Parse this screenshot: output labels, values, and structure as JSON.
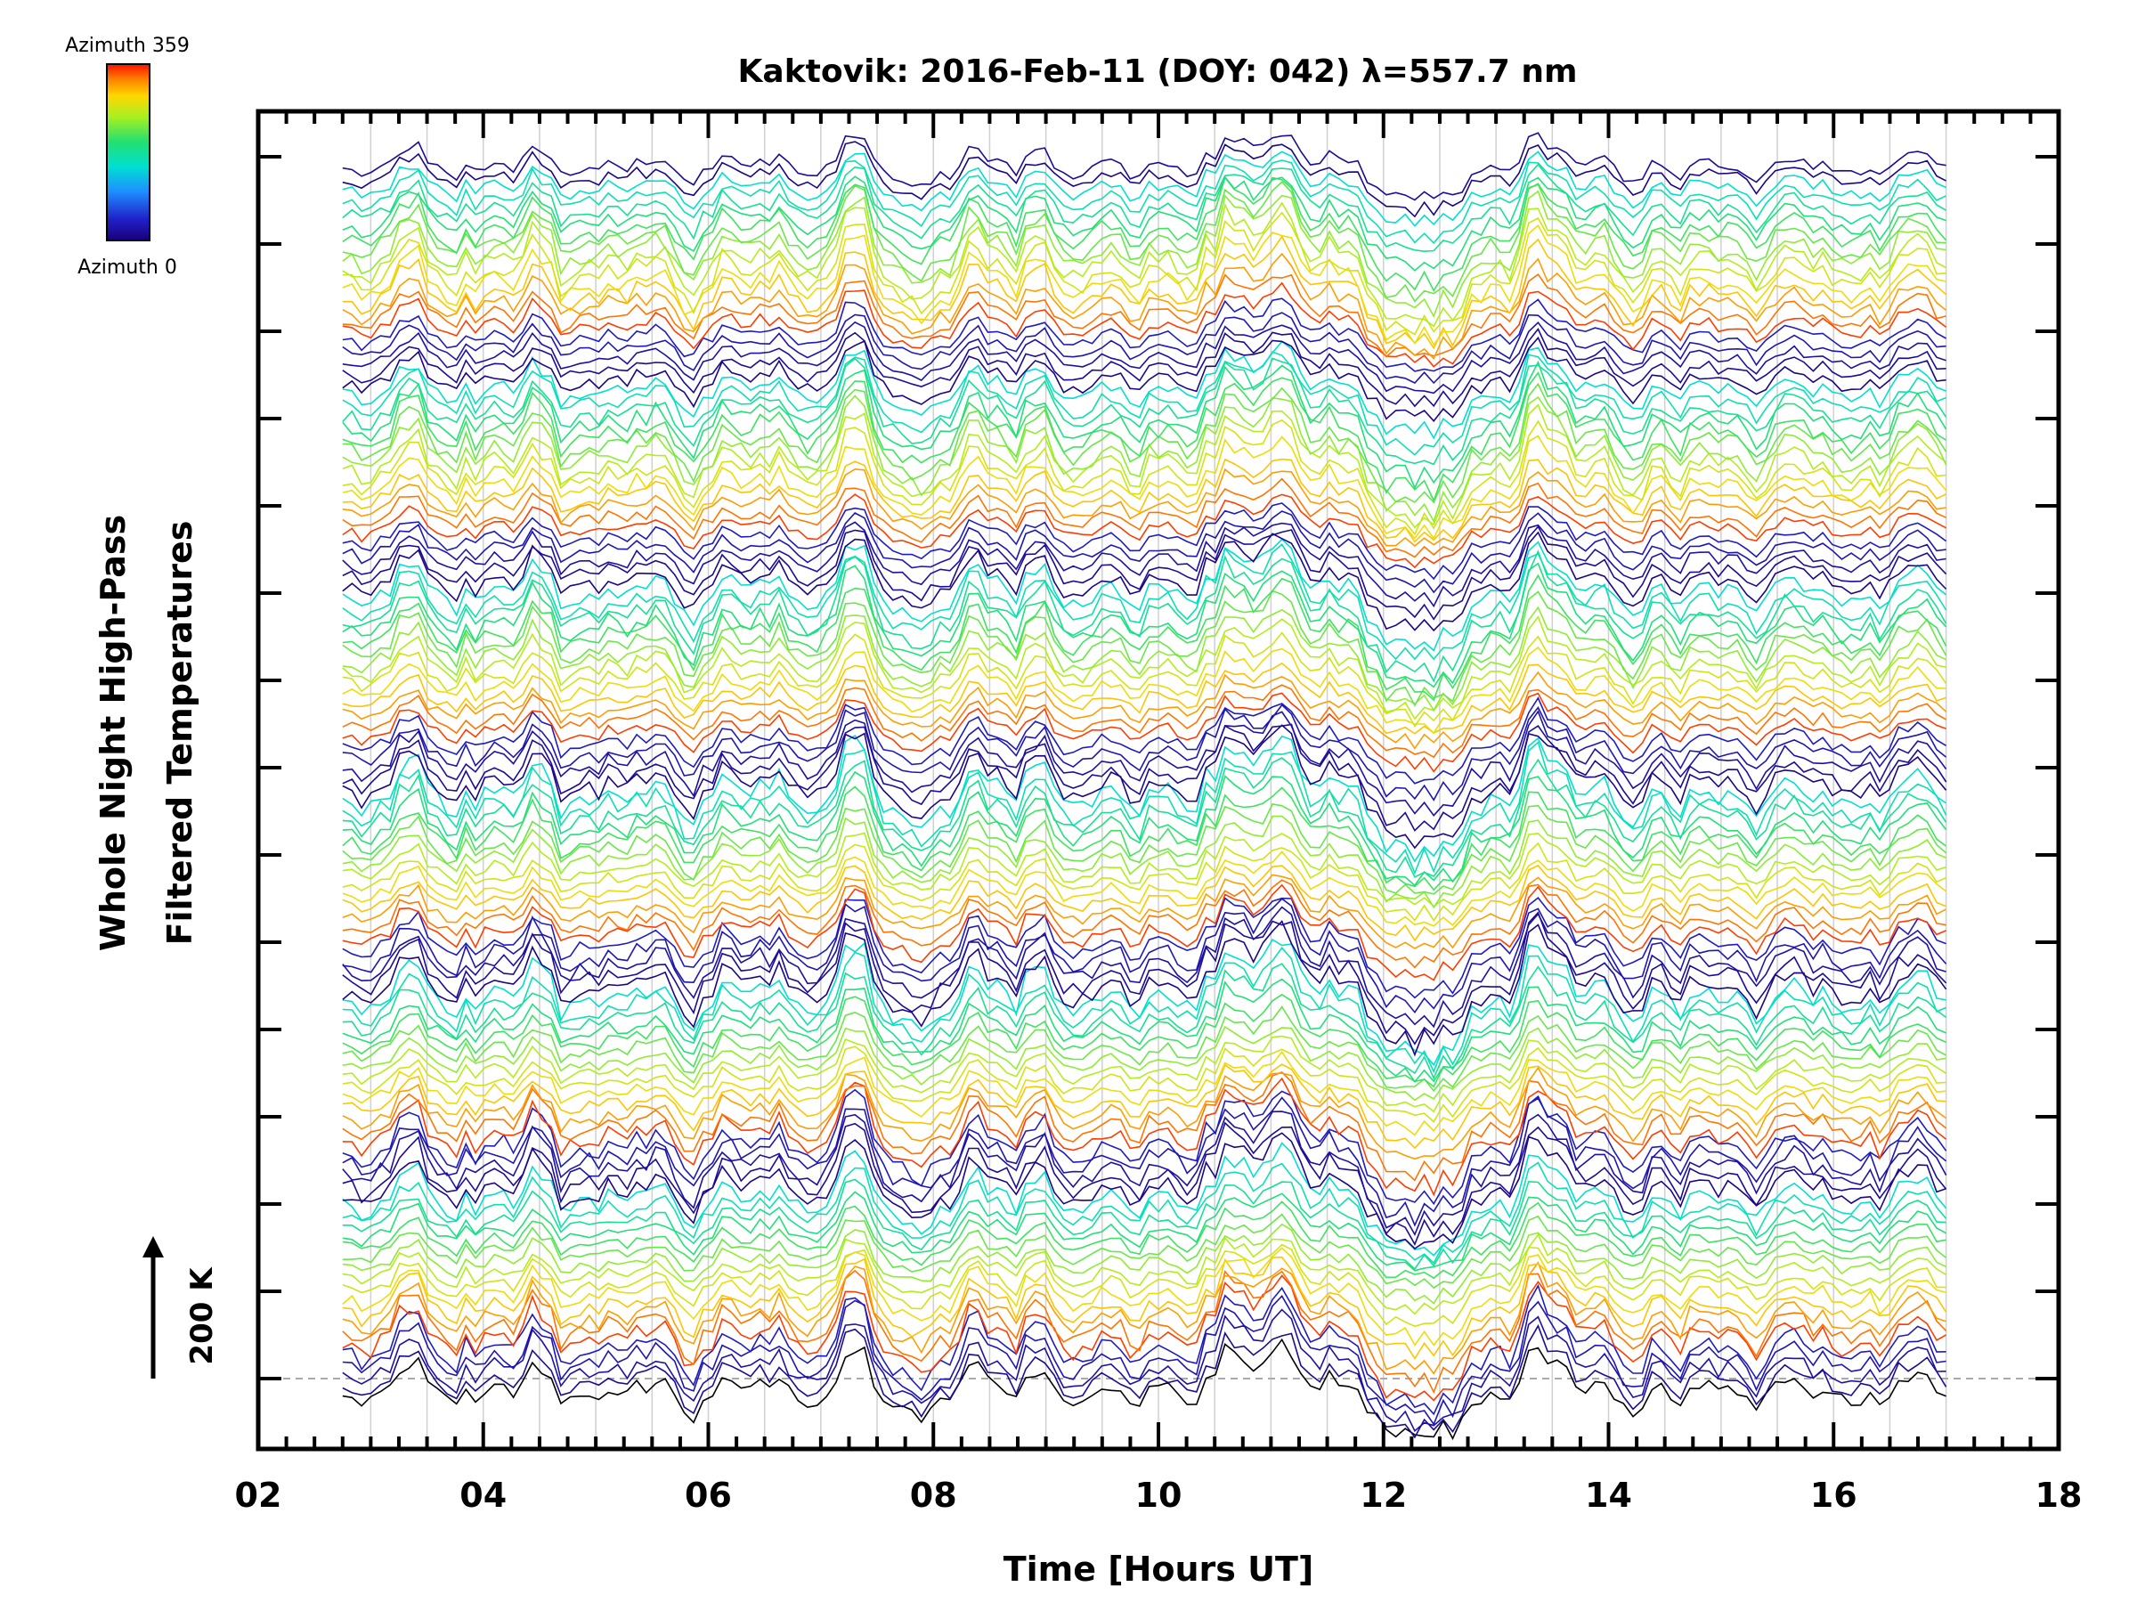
{
  "chart_data": {
    "type": "line",
    "title": "Kaktovik: 2016-Feb-11 (DOY: 042) λ=557.7 nm",
    "xlabel": "Time [Hours UT]",
    "ylabel_line1": "Whole Night High-Pass",
    "ylabel_line2": "Filtered Temperatures",
    "xlim": [
      2,
      18
    ],
    "x_tick_labels": [
      "02",
      "04",
      "06",
      "08",
      "10",
      "12",
      "14",
      "16",
      "18"
    ],
    "x_data_range": [
      2.75,
      17.0
    ],
    "grid_x": true,
    "scale_bar_label": "200 K",
    "colorbar": {
      "top_label": "Azimuth 359",
      "bottom_label": "Azimuth 0",
      "colormap": "rainbow"
    },
    "series_count": 116,
    "stack_description": "Azimuth-sorted high-pass temperature traces stacked vertically with constant offset; colours cycle from Azimuth 0 (dark blue) to Azimuth 359 (red)",
    "common_features": [
      {
        "x": 7.7,
        "kind": "dip"
      },
      {
        "x": 9.0,
        "kind": "peak"
      },
      {
        "x": 11.0,
        "kind": "peak"
      },
      {
        "x": 12.4,
        "kind": "broad dip"
      },
      {
        "x": 13.3,
        "kind": "peak"
      }
    ]
  },
  "colors": {
    "axis": "#000000",
    "grid": "#d0d0d0",
    "baseline": "#aaaaaa",
    "background": "#ffffff"
  }
}
